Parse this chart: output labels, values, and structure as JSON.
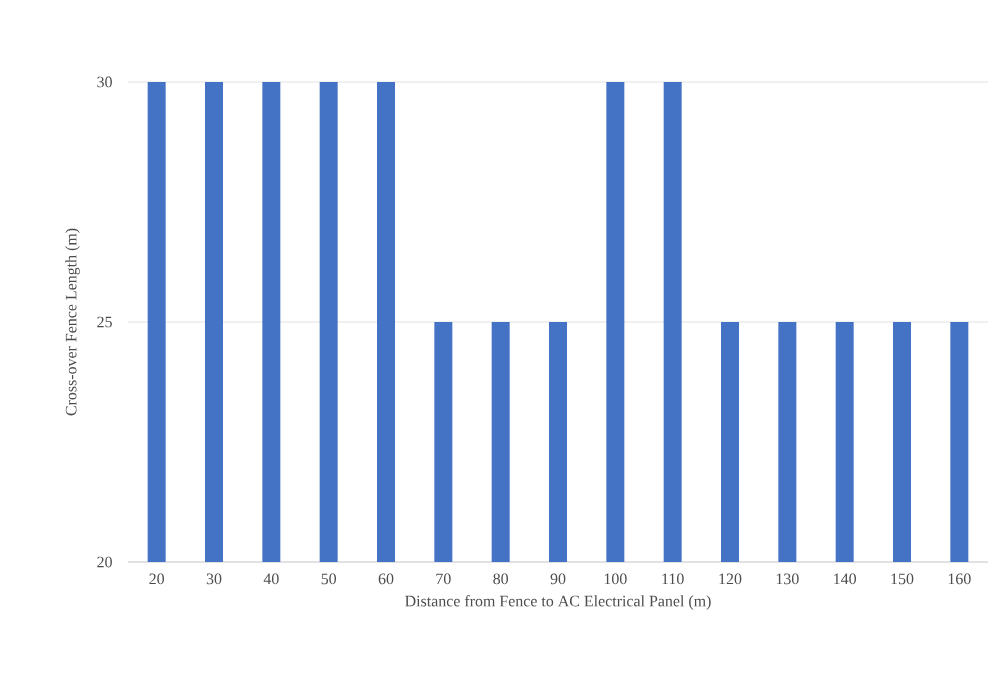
{
  "chart_data": {
    "type": "bar",
    "xlabel": "Distance from Fence to AC Electrical Panel (m)",
    "ylabel": "Cross-over Fence Length (m)",
    "categories": [
      "20",
      "30",
      "40",
      "50",
      "60",
      "70",
      "80",
      "90",
      "100",
      "110",
      "120",
      "130",
      "140",
      "150",
      "160"
    ],
    "values": [
      30,
      30,
      30,
      30,
      30,
      25,
      25,
      25,
      30,
      30,
      25,
      25,
      25,
      25,
      25
    ],
    "color": "#4472c4",
    "ylim": [
      20,
      30
    ],
    "yticks": [
      20,
      25,
      30
    ],
    "grid": "y"
  }
}
